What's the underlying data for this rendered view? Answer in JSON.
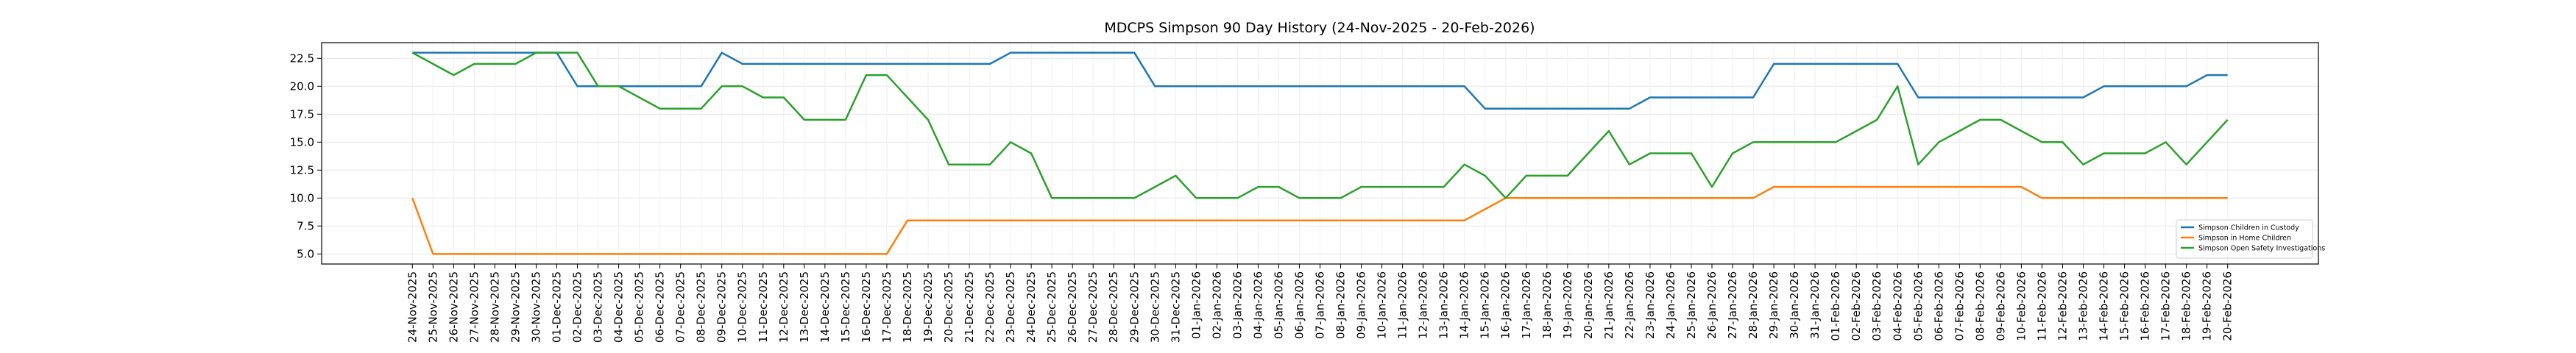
{
  "chart_data": {
    "type": "line",
    "title": "MDCPS Simpson 90 Day History (24-Nov-2025 - 20-Feb-2026)",
    "categories": [
      "24-Nov-2025",
      "25-Nov-2025",
      "26-Nov-2025",
      "27-Nov-2025",
      "28-Nov-2025",
      "29-Nov-2025",
      "30-Nov-2025",
      "01-Dec-2025",
      "02-Dec-2025",
      "03-Dec-2025",
      "04-Dec-2025",
      "05-Dec-2025",
      "06-Dec-2025",
      "07-Dec-2025",
      "08-Dec-2025",
      "09-Dec-2025",
      "10-Dec-2025",
      "11-Dec-2025",
      "12-Dec-2025",
      "13-Dec-2025",
      "14-Dec-2025",
      "15-Dec-2025",
      "16-Dec-2025",
      "17-Dec-2025",
      "18-Dec-2025",
      "19-Dec-2025",
      "20-Dec-2025",
      "21-Dec-2025",
      "22-Dec-2025",
      "23-Dec-2025",
      "24-Dec-2025",
      "25-Dec-2025",
      "26-Dec-2025",
      "27-Dec-2025",
      "28-Dec-2025",
      "29-Dec-2025",
      "30-Dec-2025",
      "31-Dec-2025",
      "01-Jan-2026",
      "02-Jan-2026",
      "03-Jan-2026",
      "04-Jan-2026",
      "05-Jan-2026",
      "06-Jan-2026",
      "07-Jan-2026",
      "08-Jan-2026",
      "09-Jan-2026",
      "10-Jan-2026",
      "11-Jan-2026",
      "12-Jan-2026",
      "13-Jan-2026",
      "14-Jan-2026",
      "15-Jan-2026",
      "16-Jan-2026",
      "17-Jan-2026",
      "18-Jan-2026",
      "19-Jan-2026",
      "20-Jan-2026",
      "21-Jan-2026",
      "22-Jan-2026",
      "23-Jan-2026",
      "24-Jan-2026",
      "25-Jan-2026",
      "26-Jan-2026",
      "27-Jan-2026",
      "28-Jan-2026",
      "29-Jan-2026",
      "30-Jan-2026",
      "31-Jan-2026",
      "01-Feb-2026",
      "02-Feb-2026",
      "03-Feb-2026",
      "04-Feb-2026",
      "05-Feb-2026",
      "06-Feb-2026",
      "07-Feb-2026",
      "08-Feb-2026",
      "09-Feb-2026",
      "10-Feb-2026",
      "11-Feb-2026",
      "12-Feb-2026",
      "13-Feb-2026",
      "14-Feb-2026",
      "15-Feb-2026",
      "16-Feb-2026",
      "17-Feb-2026",
      "18-Feb-2026",
      "19-Feb-2026",
      "20-Feb-2026"
    ],
    "series": [
      {
        "name": "Simpson Children in Custody",
        "color": "#1f77b4",
        "values": [
          23,
          23,
          23,
          23,
          23,
          23,
          23,
          23,
          20,
          20,
          20,
          20,
          20,
          20,
          20,
          23,
          22,
          22,
          22,
          22,
          22,
          22,
          22,
          22,
          22,
          22,
          22,
          22,
          22,
          23,
          23,
          23,
          23,
          23,
          23,
          23,
          20,
          20,
          20,
          20,
          20,
          20,
          20,
          20,
          20,
          20,
          20,
          20,
          20,
          20,
          20,
          20,
          18,
          18,
          18,
          18,
          18,
          18,
          18,
          18,
          19,
          19,
          19,
          19,
          19,
          19,
          22,
          22,
          22,
          22,
          22,
          22,
          22,
          19,
          19,
          19,
          19,
          19,
          19,
          19,
          19,
          19,
          20,
          20,
          20,
          20,
          20,
          21,
          21
        ]
      },
      {
        "name": "Simpson in Home Children",
        "color": "#ff7f0e",
        "values": [
          10,
          5,
          5,
          5,
          5,
          5,
          5,
          5,
          5,
          5,
          5,
          5,
          5,
          5,
          5,
          5,
          5,
          5,
          5,
          5,
          5,
          5,
          5,
          5,
          8,
          8,
          8,
          8,
          8,
          8,
          8,
          8,
          8,
          8,
          8,
          8,
          8,
          8,
          8,
          8,
          8,
          8,
          8,
          8,
          8,
          8,
          8,
          8,
          8,
          8,
          8,
          8,
          9,
          10,
          10,
          10,
          10,
          10,
          10,
          10,
          10,
          10,
          10,
          10,
          10,
          10,
          11,
          11,
          11,
          11,
          11,
          11,
          11,
          11,
          11,
          11,
          11,
          11,
          11,
          10,
          10,
          10,
          10,
          10,
          10,
          10,
          10,
          10,
          10
        ]
      },
      {
        "name": "Simpson Open Safety Investigations",
        "color": "#2ca02c",
        "values": [
          23,
          22,
          21,
          22,
          22,
          22,
          23,
          23,
          23,
          20,
          20,
          19,
          18,
          18,
          18,
          20,
          20,
          19,
          19,
          17,
          17,
          17,
          21,
          21,
          19,
          17,
          13,
          13,
          13,
          15,
          14,
          10,
          10,
          10,
          10,
          10,
          11,
          12,
          10,
          10,
          10,
          11,
          11,
          10,
          10,
          10,
          11,
          11,
          11,
          11,
          11,
          13,
          12,
          10,
          12,
          12,
          12,
          14,
          16,
          13,
          14,
          14,
          14,
          11,
          14,
          15,
          15,
          15,
          15,
          15,
          16,
          17,
          20,
          13,
          15,
          16,
          17,
          17,
          16,
          15,
          15,
          13,
          14,
          14,
          14,
          15,
          13,
          15,
          17
        ]
      }
    ],
    "ylim": [
      4.1,
      23.9
    ],
    "yticks": [
      {
        "value": 5,
        "label": "5.0"
      },
      7.5,
      {
        "value": 10,
        "label": "10.0"
      },
      12.5,
      {
        "value": 15,
        "label": "15.0"
      },
      17.5,
      {
        "value": 20,
        "label": "20.0"
      },
      22.5
    ],
    "grid": true,
    "legend": "lower right"
  }
}
